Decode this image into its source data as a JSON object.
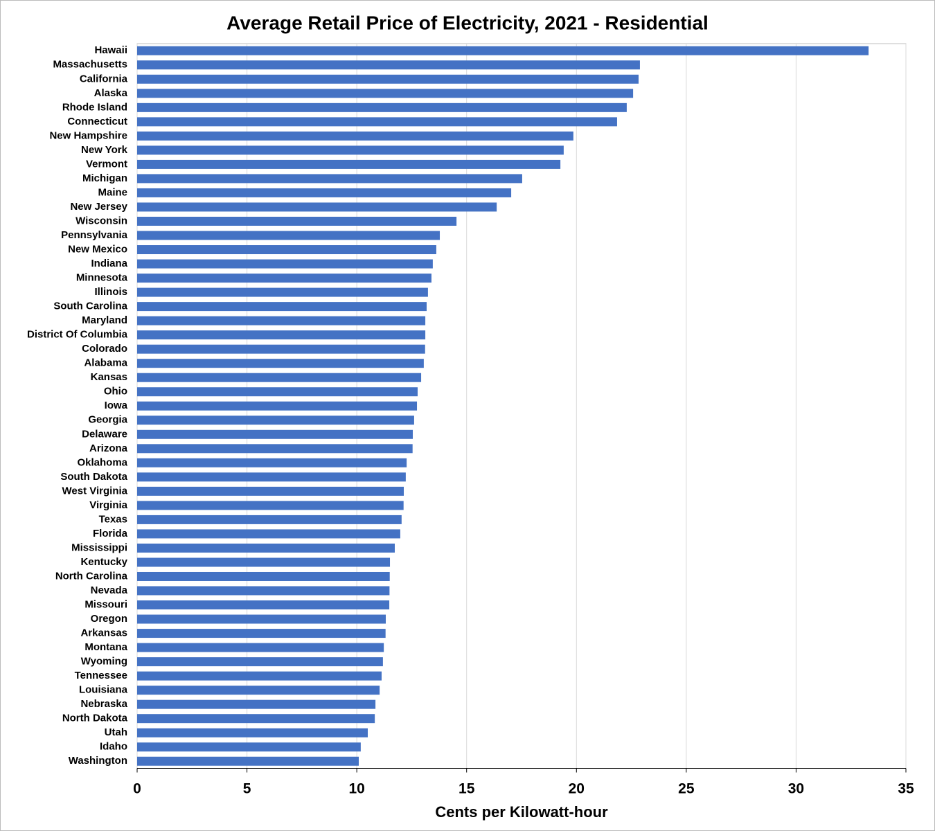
{
  "chart_data": {
    "type": "hbar",
    "title": "Average Retail Price of Electricity, 2021 - Residential",
    "x_label": "Cents per Kilowatt-hour",
    "categories": [
      "Hawaii",
      "Massachusetts",
      "California",
      "Alaska",
      "Rhode Island",
      "Connecticut",
      "New Hampshire",
      "New York",
      "Vermont",
      "Michigan",
      "Maine",
      "New Jersey",
      "Wisconsin",
      "Pennsylvania",
      "New Mexico",
      "Indiana",
      "Minnesota",
      "Illinois",
      "South Carolina",
      "Maryland",
      "District Of Columbia",
      "Colorado",
      "Alabama",
      "Kansas",
      "Ohio",
      "Iowa",
      "Georgia",
      "Delaware",
      "Arizona",
      "Oklahoma",
      "South Dakota",
      "West Virginia",
      "Virginia",
      "Texas",
      "Florida",
      "Mississippi",
      "Kentucky",
      "North Carolina",
      "Nevada",
      "Missouri",
      "Oregon",
      "Arkansas",
      "Montana",
      "Wyoming",
      "Tennessee",
      "Louisiana",
      "Nebraska",
      "North Dakota",
      "Utah",
      "Idaho",
      "Washington"
    ],
    "values": [
      33.3,
      22.89,
      22.83,
      22.58,
      22.29,
      21.85,
      19.86,
      19.42,
      19.27,
      17.53,
      17.03,
      16.37,
      14.54,
      13.78,
      13.62,
      13.46,
      13.4,
      13.24,
      13.18,
      13.12,
      13.12,
      13.11,
      13.05,
      12.93,
      12.77,
      12.74,
      12.61,
      12.55,
      12.54,
      12.27,
      12.23,
      12.14,
      12.13,
      12.04,
      11.98,
      11.73,
      11.51,
      11.5,
      11.49,
      11.48,
      11.32,
      11.31,
      11.23,
      11.19,
      11.13,
      11.04,
      10.85,
      10.82,
      10.5,
      10.18,
      10.09
    ],
    "color": "#4472c4",
    "xlim": [
      0,
      35
    ],
    "xticks": [
      0,
      5,
      10,
      15,
      20,
      25,
      30,
      35
    ],
    "grid": true
  }
}
